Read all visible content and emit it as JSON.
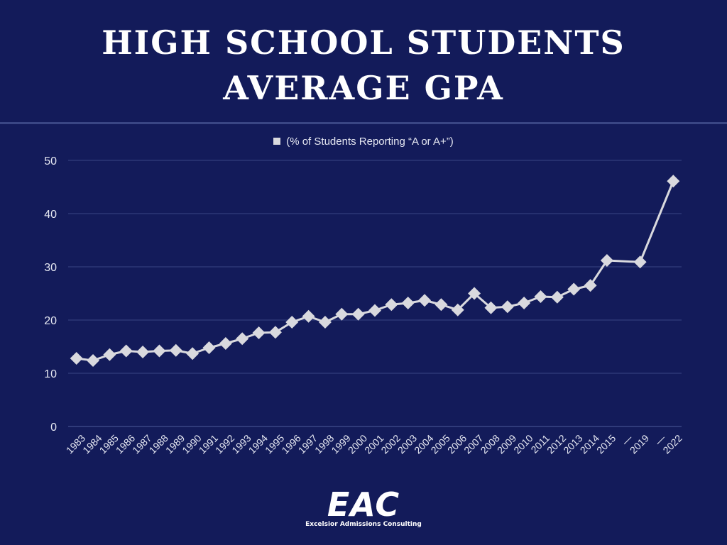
{
  "title_lines": [
    "HIGH SCHOOL STUDENTS",
    "AVERAGE GPA"
  ],
  "brand": {
    "name": "EAC",
    "tagline": "Excelsior Admissions Consulting"
  },
  "colors": {
    "background": "#131b5a",
    "series": "#d9d9de",
    "grid": "#3a4684",
    "text": "#ffffff"
  },
  "chart_data": {
    "type": "line",
    "title": "HIGH SCHOOL STUDENTS AVERAGE GPA",
    "legend": "(% of Students Reporting “A or A+”)",
    "legend_position": "top-center",
    "grid": true,
    "ylim": [
      0,
      50
    ],
    "yticks": [
      0,
      10,
      20,
      30,
      40,
      50
    ],
    "categories": [
      "1983",
      "1984",
      "1985",
      "1986",
      "1987",
      "1988",
      "1989",
      "1990",
      "1991",
      "1992",
      "1993",
      "1994",
      "1995",
      "1996",
      "1997",
      "1998",
      "1999",
      "2000",
      "2001",
      "2002",
      "2003",
      "2004",
      "2005",
      "2006",
      "2007",
      "2008",
      "2009",
      "2010",
      "2011",
      "2012",
      "2013",
      "2014",
      "2015",
      "—",
      "2019",
      "—",
      "2022"
    ],
    "series": [
      {
        "name": "(% of Students Reporting “A or A+”)",
        "marker": "diamond",
        "values": [
          12.8,
          12.4,
          13.5,
          14.2,
          14.0,
          14.2,
          14.3,
          13.7,
          14.8,
          15.6,
          16.5,
          17.6,
          17.7,
          19.6,
          20.7,
          19.6,
          21.1,
          21.1,
          21.8,
          22.9,
          23.2,
          23.7,
          22.9,
          21.9,
          25.0,
          22.3,
          22.5,
          23.2,
          24.4,
          24.3,
          25.8,
          26.5,
          31.2,
          null,
          30.9,
          null,
          46.1
        ]
      }
    ]
  }
}
